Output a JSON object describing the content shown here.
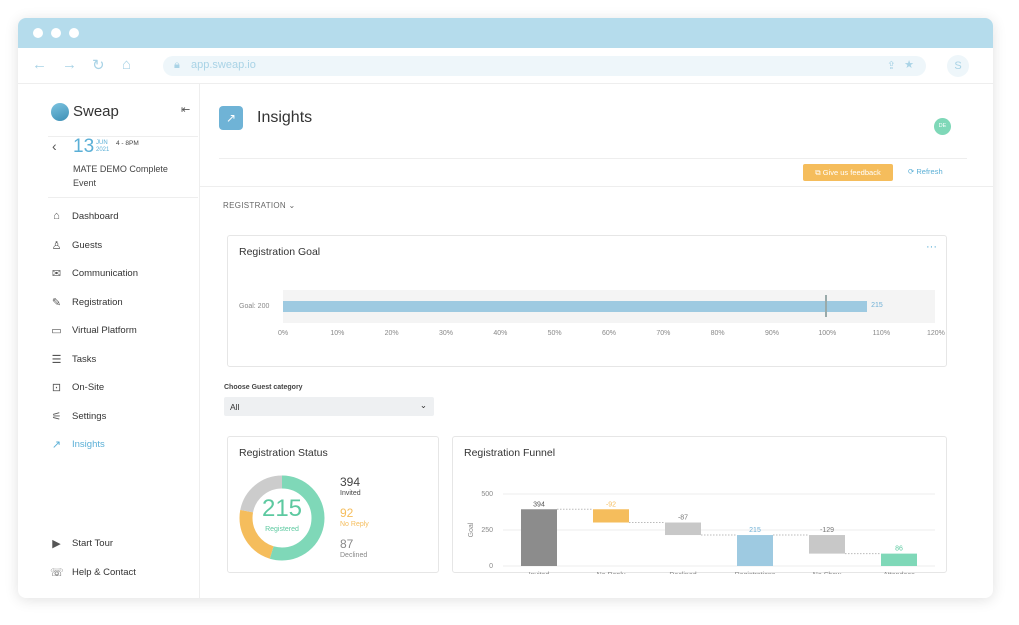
{
  "browser": {
    "url": "app.sweap.io",
    "profile_initial": "S"
  },
  "sidebar": {
    "brand": "Sweap",
    "event": {
      "day": "13",
      "month": "JUN",
      "year": "2021",
      "time": "4 - 8PM",
      "name_line1": "MATE DEMO Complete",
      "name_line2": "Event"
    },
    "items": [
      {
        "label": "Dashboard",
        "icon": "⌂"
      },
      {
        "label": "Guests",
        "icon": "♙"
      },
      {
        "label": "Communication",
        "icon": "✉"
      },
      {
        "label": "Registration",
        "icon": "✎"
      },
      {
        "label": "Virtual Platform",
        "icon": "▭"
      },
      {
        "label": "Tasks",
        "icon": "☰"
      },
      {
        "label": "On-Site",
        "icon": "⊡"
      },
      {
        "label": "Settings",
        "icon": "⚟"
      },
      {
        "label": "Insights",
        "icon": "↗"
      }
    ],
    "bottom": [
      {
        "label": "Start Tour",
        "icon": "▶"
      },
      {
        "label": "Help & Contact",
        "icon": "☏"
      }
    ]
  },
  "header": {
    "title": "Insights",
    "user_initials": "DE",
    "feedback_label": "Give us feedback",
    "refresh_label": "Refresh"
  },
  "section": {
    "label": "REGISTRATION"
  },
  "goal": {
    "title": "Registration Goal",
    "menu": "···",
    "goal_label": "Goal: 200",
    "value_label": "215",
    "percent": 107.5,
    "ticks": [
      "0%",
      "10%",
      "20%",
      "30%",
      "40%",
      "50%",
      "60%",
      "70%",
      "80%",
      "90%",
      "100%",
      "110%",
      "120%"
    ]
  },
  "filter": {
    "label": "Choose Guest category",
    "value": "All"
  },
  "status": {
    "title": "Registration Status",
    "center_value": "215",
    "center_label": "Registered",
    "items": [
      {
        "value": "394",
        "label": "Invited",
        "color": "#444444"
      },
      {
        "value": "92",
        "label": "No Reply",
        "color": "#f5bd5c"
      },
      {
        "value": "87",
        "label": "Declined",
        "color": "#888888"
      }
    ]
  },
  "chart_data": {
    "type": "bar",
    "title": "Registration Funnel",
    "ylabel": "Goal",
    "ylim": [
      0,
      500
    ],
    "yticks": [
      "0",
      "250",
      "500"
    ],
    "categories": [
      "Invited",
      "No Reply",
      "Declined",
      "Registrations",
      "No Show",
      "Attendees"
    ],
    "bars": [
      {
        "from": 0,
        "to": 394,
        "label": "394",
        "color": "#8c8c8c",
        "labelColor": "#555"
      },
      {
        "from": 302,
        "to": 394,
        "label": "-92",
        "color": "#f5bd5c",
        "labelColor": "#f5bd5c"
      },
      {
        "from": 215,
        "to": 302,
        "label": "-87",
        "color": "#c8c8c8",
        "labelColor": "#777"
      },
      {
        "from": 0,
        "to": 215,
        "label": "215",
        "color": "#9ecae1",
        "labelColor": "#6fb0d6"
      },
      {
        "from": 86,
        "to": 215,
        "label": "-129",
        "color": "#c8c8c8",
        "labelColor": "#777"
      },
      {
        "from": 0,
        "to": 86,
        "label": "86",
        "color": "#7fd8b8",
        "labelColor": "#5cc9a0"
      }
    ]
  }
}
